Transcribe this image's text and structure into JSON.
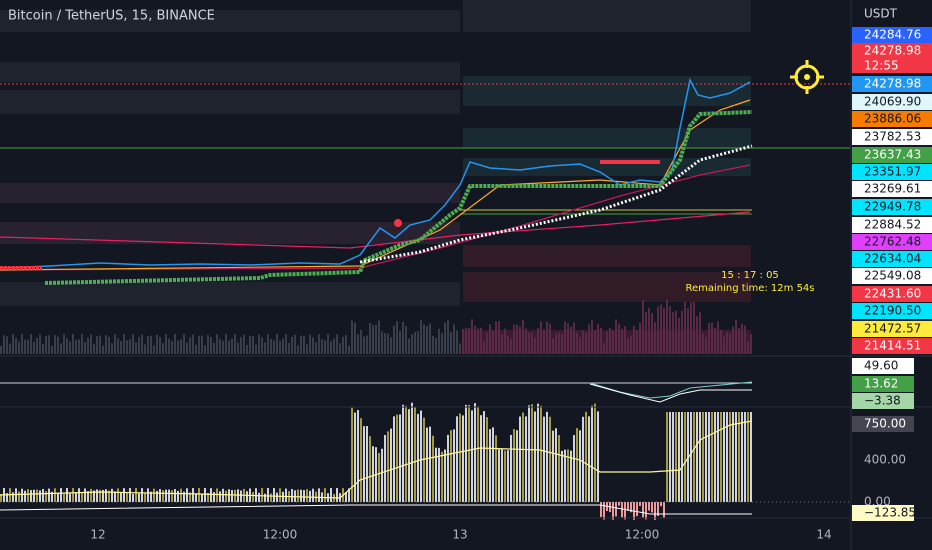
{
  "header": {
    "title": "Bitcoin / TetherUS, 15, BINANCE"
  },
  "price_axis": {
    "unit": "USDT",
    "labels": [
      {
        "text": "24284.76",
        "bg": "#2962ff",
        "fg": "#ffffff"
      },
      {
        "text": "24278.98",
        "bg": "#f23645",
        "fg": "#ffffff",
        "sub": "12:55"
      },
      {
        "text": "24278.98",
        "bg": "#2196f3",
        "fg": "#ffffff"
      },
      {
        "text": "24069.90",
        "bg": "#e0f7fa",
        "fg": "#131722"
      },
      {
        "text": "23886.06",
        "bg": "#f57c00",
        "fg": "#131722"
      },
      {
        "text": "23782.53",
        "bg": "#ffffff",
        "fg": "#131722"
      },
      {
        "text": "23637.43",
        "bg": "#43a047",
        "fg": "#ffffff"
      },
      {
        "text": "23351.97",
        "bg": "#00e5ff",
        "fg": "#131722"
      },
      {
        "text": "23269.61",
        "bg": "#ffffff",
        "fg": "#131722"
      },
      {
        "text": "22949.78",
        "bg": "#00e5ff",
        "fg": "#131722"
      },
      {
        "text": "22884.52",
        "bg": "#ffffff",
        "fg": "#131722"
      },
      {
        "text": "22762.48",
        "bg": "#e040fb",
        "fg": "#131722"
      },
      {
        "text": "22634.04",
        "bg": "#00e5ff",
        "fg": "#131722"
      },
      {
        "text": "22549.08",
        "bg": "#ffffff",
        "fg": "#131722"
      },
      {
        "text": "22431.60",
        "bg": "#f23645",
        "fg": "#ffffff"
      },
      {
        "text": "22190.50",
        "bg": "#00e5ff",
        "fg": "#131722"
      },
      {
        "text": "21472.57",
        "bg": "#ffeb3b",
        "fg": "#131722"
      },
      {
        "text": "21414.51",
        "bg": "#f23645",
        "fg": "#ffffff"
      }
    ]
  },
  "countdown": {
    "clock": "15 : 17 : 05",
    "remaining": "Remaining time: 12m 54s"
  },
  "indicator_axis": {
    "labels": [
      {
        "text": "49.60",
        "bg": "#ffffff",
        "fg": "#131722"
      },
      {
        "text": "13.62",
        "bg": "#43a047",
        "fg": "#ffffff"
      },
      {
        "text": "−3.38",
        "bg": "#a5d6a7",
        "fg": "#131722"
      },
      {
        "text": "750.00",
        "bg": "#434651",
        "fg": "#ffffff"
      },
      {
        "text": "400.00",
        "bg": "none",
        "fg": "#b2b5be"
      },
      {
        "text": "0.00",
        "bg": "none",
        "fg": "#b2b5be"
      },
      {
        "text": "−123.85",
        "bg": "#fff9c4",
        "fg": "#131722"
      }
    ]
  },
  "time_axis": {
    "labels": [
      "12",
      "12:00",
      "13",
      "12:00",
      "14"
    ]
  }
}
